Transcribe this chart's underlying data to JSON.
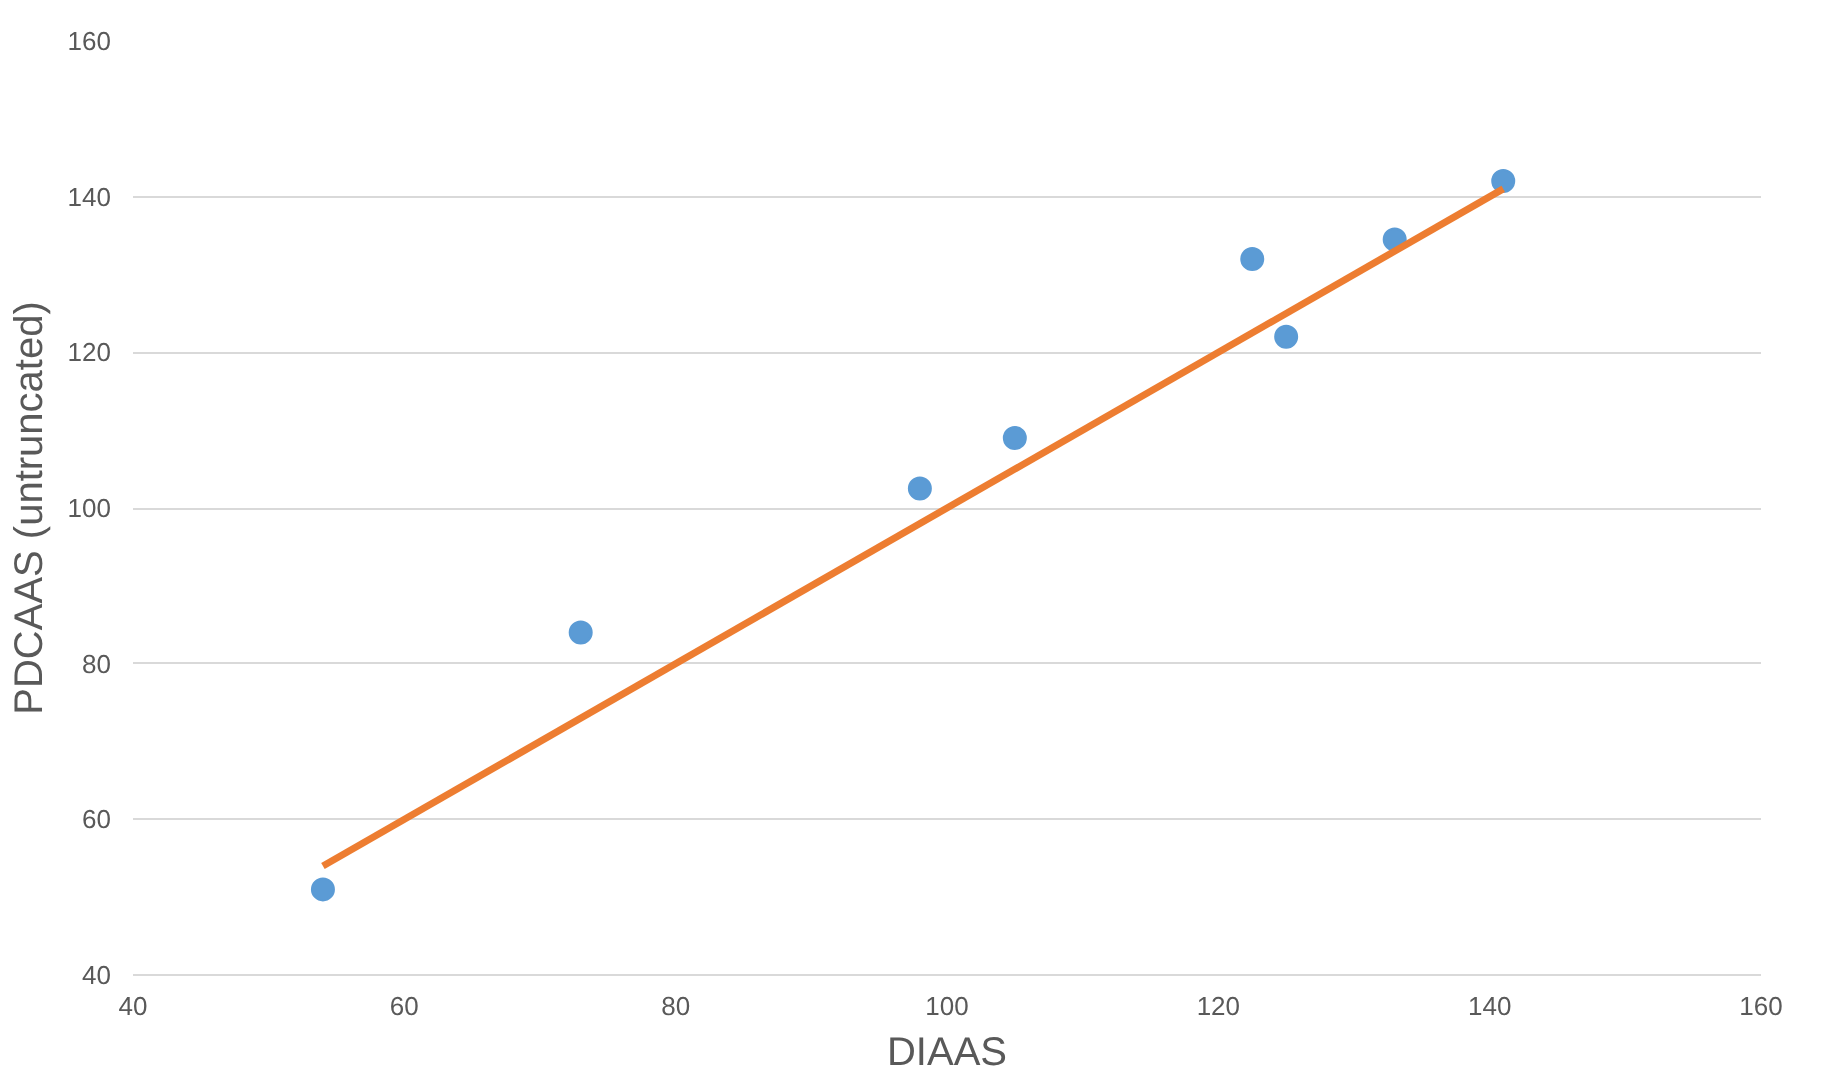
{
  "chart_data": {
    "type": "scatter",
    "xlabel": "DIAAS",
    "ylabel": "PDCAAS (untruncated)",
    "xlim": [
      40,
      160
    ],
    "xticks": [
      40,
      60,
      80,
      100,
      120,
      140,
      160
    ],
    "ylim": [
      40,
      160
    ],
    "yticks": [
      40,
      60,
      80,
      100,
      120,
      140,
      160
    ],
    "grid": "y",
    "series": [
      {
        "color": "#5b9bd5",
        "marker": "circle",
        "x": [
          54,
          73,
          98,
          105,
          122.5,
          125,
          133,
          141
        ],
        "values": [
          51,
          84,
          102.5,
          109,
          132,
          122,
          134.5,
          142
        ]
      },
      {
        "type": "line",
        "color": "#ed7d31",
        "x": [
          54,
          141
        ],
        "values": [
          54,
          141
        ],
        "line_style": "solid"
      }
    ]
  }
}
